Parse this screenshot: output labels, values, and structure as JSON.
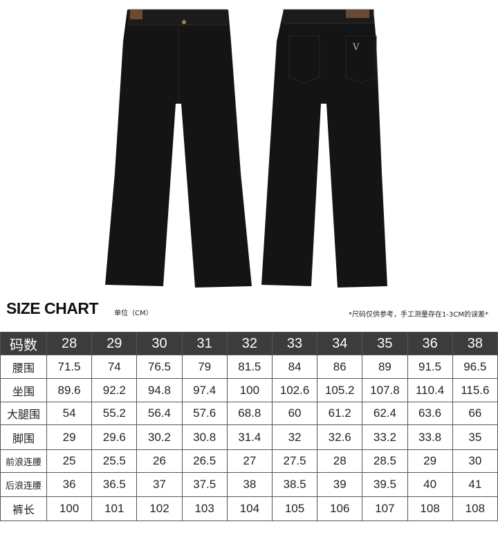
{
  "title": "SIZE CHART",
  "unit": "单位（CM）",
  "note": "*尺码仅供参考，手工测量存在1-3CM的误差*",
  "colors": {
    "header_bg": "#3c3c3c",
    "pants": "#141414",
    "label_patch": "#6b4a33"
  },
  "table": {
    "header_label": "码数",
    "sizes": [
      "28",
      "29",
      "30",
      "31",
      "32",
      "33",
      "34",
      "35",
      "36",
      "38"
    ],
    "rows": [
      {
        "label": "腰围",
        "values": [
          "71.5",
          "74",
          "76.5",
          "79",
          "81.5",
          "84",
          "86",
          "89",
          "91.5",
          "96.5"
        ]
      },
      {
        "label": "坐围",
        "values": [
          "89.6",
          "92.2",
          "94.8",
          "97.4",
          "100",
          "102.6",
          "105.2",
          "107.8",
          "110.4",
          "115.6"
        ]
      },
      {
        "label": "大腿围",
        "values": [
          "54",
          "55.2",
          "56.4",
          "57.6",
          "68.8",
          "60",
          "61.2",
          "62.4",
          "63.6",
          "66"
        ]
      },
      {
        "label": "脚围",
        "values": [
          "29",
          "29.6",
          "30.2",
          "30.8",
          "31.4",
          "32",
          "32.6",
          "33.2",
          "33.8",
          "35"
        ]
      },
      {
        "label": "前浪连腰",
        "values": [
          "25",
          "25.5",
          "26",
          "26.5",
          "27",
          "27.5",
          "28",
          "28.5",
          "29",
          "30"
        ]
      },
      {
        "label": "后浪连腰",
        "values": [
          "36",
          "36.5",
          "37",
          "37.5",
          "38",
          "38.5",
          "39",
          "39.5",
          "40",
          "41"
        ]
      },
      {
        "label": "裤长",
        "values": [
          "100",
          "101",
          "102",
          "103",
          "104",
          "105",
          "106",
          "107",
          "108",
          "108"
        ]
      }
    ]
  }
}
